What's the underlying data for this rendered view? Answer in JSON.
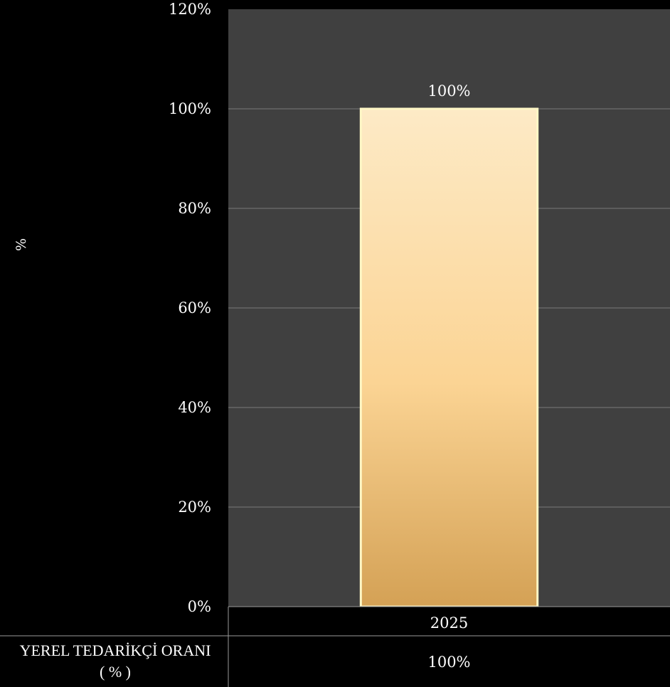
{
  "chart_data": {
    "type": "bar",
    "title": "",
    "ylabel": "%",
    "xlabel": "",
    "categories": [
      "2025"
    ],
    "series": [
      {
        "name": "YEREL TEDARİKÇİ ORANI ( % )",
        "values": [
          100
        ]
      }
    ],
    "ylim": [
      0,
      120
    ],
    "yticks": [
      0,
      20,
      40,
      60,
      80,
      100,
      120
    ],
    "ytick_labels": [
      "0%",
      "20%",
      "40%",
      "60%",
      "80%",
      "100%",
      "120%"
    ],
    "data_labels": [
      "100%"
    ],
    "grid": true,
    "data_table": {
      "row_header": [
        "YEREL TEDARİKÇİ ORANI",
        "( % )"
      ],
      "cells": [
        "100%"
      ]
    },
    "colors": {
      "plot_bg": "#404040",
      "page_bg": "#000000",
      "grid": "#7a7a7a",
      "bar_top": "#fdeac6",
      "bar_mid": "#fbd494",
      "bar_bottom": "#d4a155",
      "bar_border": "#fff7c6"
    }
  }
}
